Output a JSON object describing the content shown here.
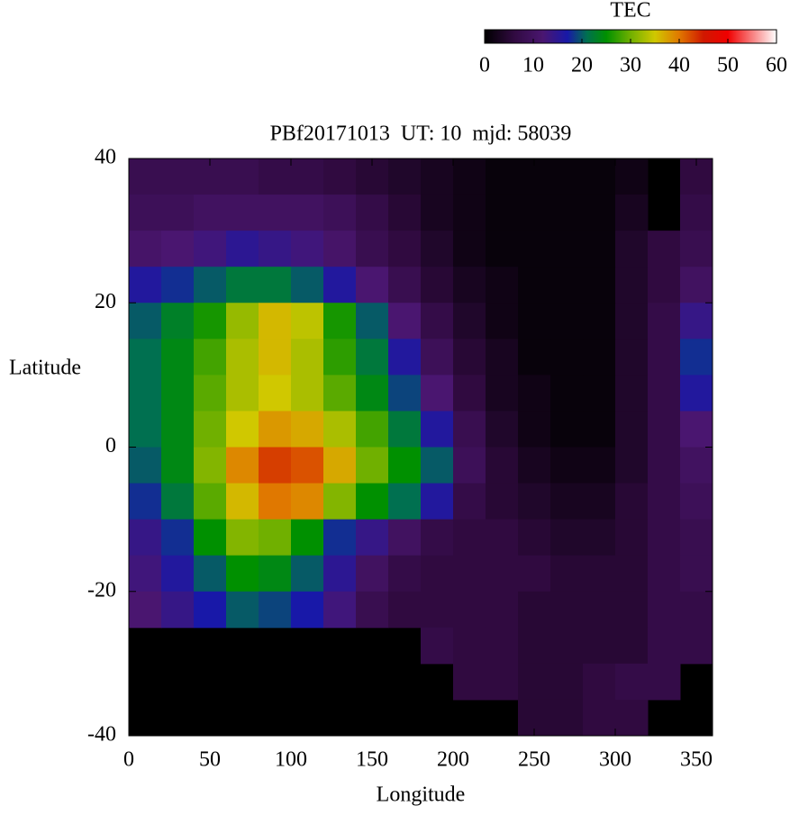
{
  "chart_data": {
    "type": "heatmap",
    "title": "PBf20171013  UT: 10  mjd: 58039",
    "x_label": "Longitude",
    "y_label": "Latitude",
    "x": [
      10,
      30,
      50,
      70,
      90,
      110,
      130,
      150,
      170,
      190,
      210,
      230,
      250,
      270,
      290,
      310,
      330,
      350
    ],
    "y": [
      37.5,
      32.5,
      27.5,
      22.5,
      17.5,
      12.5,
      7.5,
      2.5,
      -2.5,
      -7.5,
      -12.5,
      -17.5,
      -22.5,
      -27.5,
      -32.5,
      -37.5
    ],
    "values": [
      [
        8,
        8,
        8,
        8,
        7,
        7,
        6,
        5,
        4,
        3,
        2,
        1,
        1,
        1,
        1,
        2,
        null,
        6
      ],
      [
        9,
        9,
        10,
        10,
        10,
        10,
        9,
        7,
        5,
        3,
        2,
        1,
        1,
        1,
        1,
        3,
        null,
        7
      ],
      [
        11,
        12,
        13,
        15,
        14,
        13,
        11,
        8,
        6,
        4,
        2,
        1,
        1,
        1,
        1,
        4,
        6,
        8
      ],
      [
        16,
        18,
        20,
        22,
        22,
        20,
        16,
        12,
        8,
        5,
        3,
        2,
        1,
        1,
        1,
        4,
        6,
        10
      ],
      [
        20,
        23,
        26,
        32,
        36,
        34,
        26,
        20,
        12,
        7,
        4,
        2,
        1,
        1,
        1,
        4,
        7,
        14
      ],
      [
        21,
        24,
        28,
        33,
        36,
        33,
        27,
        22,
        16,
        9,
        5,
        3,
        1,
        1,
        1,
        4,
        7,
        18
      ],
      [
        21,
        24,
        29,
        33,
        35,
        33,
        29,
        24,
        19,
        12,
        6,
        3,
        2,
        1,
        1,
        4,
        7,
        16
      ],
      [
        21,
        24,
        30,
        35,
        38,
        37,
        33,
        28,
        22,
        16,
        8,
        4,
        2,
        1,
        1,
        4,
        7,
        12
      ],
      [
        20,
        24,
        31,
        39,
        43,
        42,
        37,
        30,
        25,
        20,
        9,
        5,
        3,
        2,
        2,
        4,
        7,
        10
      ],
      [
        18,
        22,
        29,
        36,
        40,
        39,
        31,
        25,
        21,
        16,
        7,
        5,
        4,
        3,
        3,
        5,
        7,
        9
      ],
      [
        14,
        18,
        25,
        31,
        30,
        25,
        18,
        14,
        10,
        7,
        6,
        6,
        5,
        4,
        4,
        5,
        7,
        8
      ],
      [
        13,
        16,
        20,
        25,
        24,
        20,
        15,
        10,
        7,
        6,
        6,
        6,
        6,
        5,
        5,
        5,
        7,
        8
      ],
      [
        12,
        14,
        17,
        20,
        19,
        17,
        13,
        8,
        6,
        6,
        6,
        6,
        5,
        5,
        5,
        5,
        7,
        7
      ],
      [
        null,
        null,
        null,
        null,
        null,
        null,
        null,
        null,
        null,
        7,
        6,
        6,
        5,
        5,
        5,
        5,
        7,
        7
      ],
      [
        null,
        null,
        null,
        null,
        null,
        null,
        null,
        null,
        null,
        null,
        6,
        6,
        5,
        5,
        6,
        7,
        7,
        null
      ],
      [
        null,
        null,
        null,
        null,
        null,
        null,
        null,
        null,
        null,
        null,
        null,
        null,
        5,
        5,
        6,
        6,
        null,
        null
      ]
    ],
    "xlim": [
      0,
      360
    ],
    "xticks": [
      0,
      50,
      100,
      150,
      200,
      250,
      300,
      350
    ],
    "ylim": [
      -40,
      40
    ],
    "yticks": [
      -40,
      -20,
      0,
      20,
      40
    ],
    "colorbar": {
      "title": "TEC",
      "lim": [
        0,
        60
      ],
      "ticks": [
        0,
        10,
        20,
        30,
        40,
        50,
        60
      ],
      "colormap": [
        {
          "value": 0,
          "color": "#000000"
        },
        {
          "value": 6,
          "color": "#300a40"
        },
        {
          "value": 12,
          "color": "#4a1670"
        },
        {
          "value": 17,
          "color": "#1818a8"
        },
        {
          "value": 21,
          "color": "#007050"
        },
        {
          "value": 25,
          "color": "#009000"
        },
        {
          "value": 30,
          "color": "#70b000"
        },
        {
          "value": 35,
          "color": "#d0c800"
        },
        {
          "value": 40,
          "color": "#e07800"
        },
        {
          "value": 45,
          "color": "#d01800"
        },
        {
          "value": 50,
          "color": "#f00000"
        },
        {
          "value": 60,
          "color": "#ffffff"
        }
      ]
    }
  }
}
